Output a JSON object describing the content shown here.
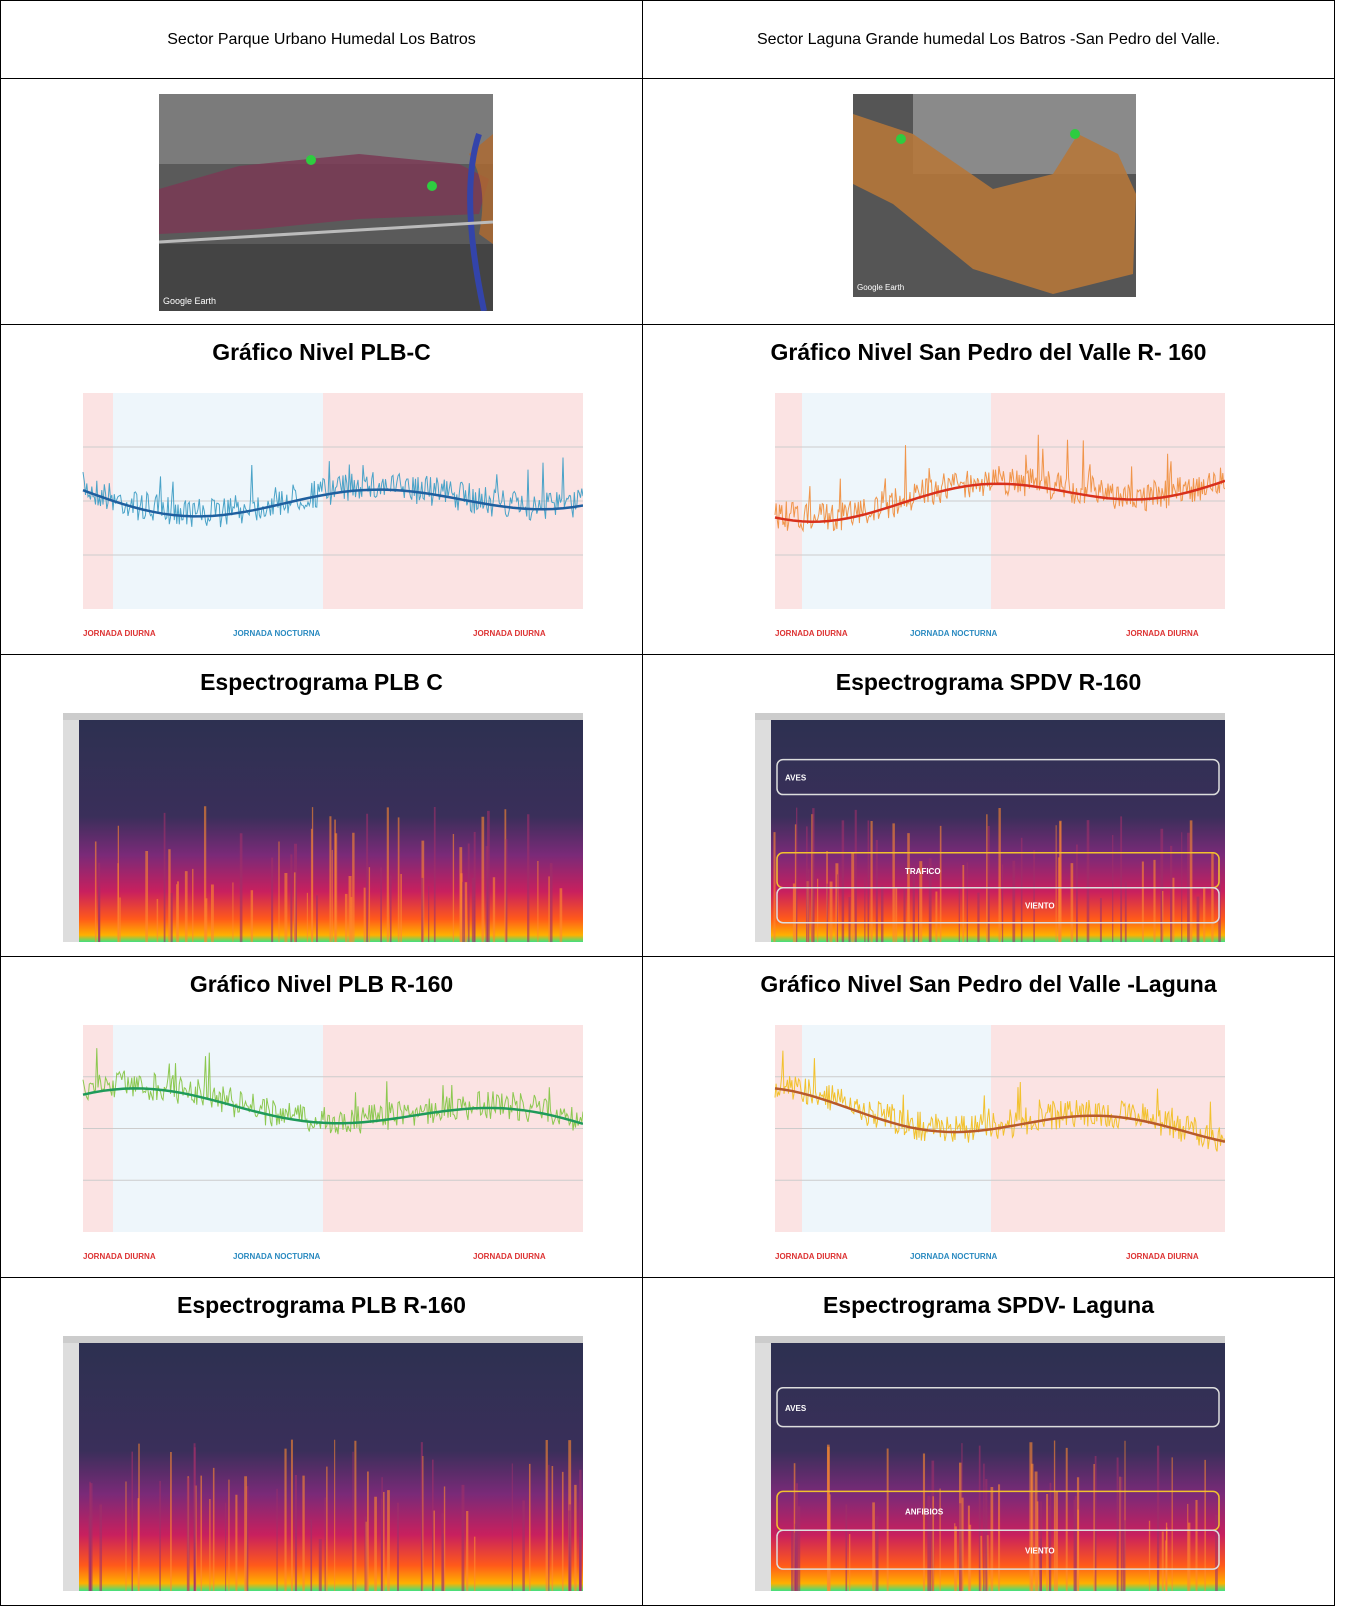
{
  "header": {
    "left": "Sector Parque Urbano Humedal  Los Batros",
    "right": "Sector Laguna Grande humedal Los Batros -San Pedro del Valle."
  },
  "maps": {
    "left_credit": "Google Earth",
    "right_credit": "Google Earth"
  },
  "panels": [
    {
      "title": "Gráfico Nivel PLB-C",
      "kind": "level",
      "color": "#4aa3c8",
      "trend": "#1f5f9f",
      "periods": [
        "JORNADA DIURNA",
        "JORNADA NOCTURNA",
        "JORNADA DIURNA"
      ]
    },
    {
      "title": "Gráfico Nivel San Pedro del Valle R- 160",
      "kind": "level",
      "color": "#f0954a",
      "trend": "#d8301c",
      "periods": [
        "JORNADA DIURNA",
        "JORNADA NOCTURNA",
        "JORNADA DIURNA"
      ]
    },
    {
      "title": "Espectrograma PLB C",
      "kind": "spectrogram"
    },
    {
      "title": "Espectrograma SPDV R-160",
      "kind": "spectrogram",
      "annotations": [
        "AVES",
        "TRAFICO",
        "VIENTO"
      ]
    },
    {
      "title": "Gráfico Nivel PLB  R-160",
      "kind": "level",
      "color": "#8cc850",
      "trend": "#1f9a5a",
      "periods": [
        "JORNADA DIURNA",
        "JORNADA NOCTURNA",
        "JORNADA DIURNA"
      ]
    },
    {
      "title": "Gráfico Nivel San Pedro del Valle -Laguna",
      "kind": "level",
      "color": "#f2c12e",
      "trend": "#b85a2a",
      "periods": [
        "JORNADA DIURNA",
        "JORNADA NOCTURNA",
        "JORNADA DIURNA"
      ]
    },
    {
      "title": "Espectrograma PLB  R-160",
      "kind": "spectrogram"
    },
    {
      "title": "Espectrograma SPDV- Laguna",
      "kind": "spectrogram",
      "annotations": [
        "AVES",
        "ANFIBIOS",
        "VIENTO"
      ]
    }
  ]
}
